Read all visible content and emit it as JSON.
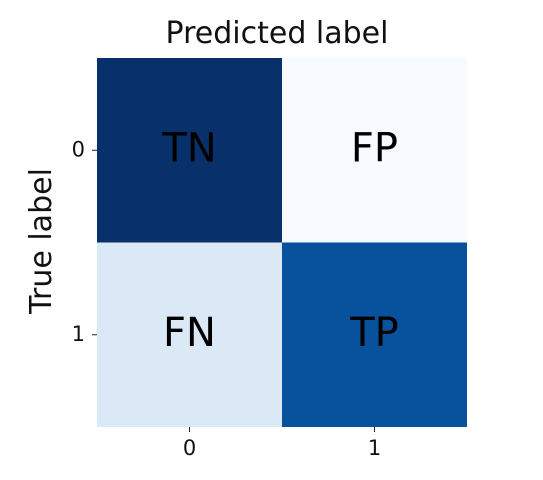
{
  "chart_data": {
    "type": "heatmap",
    "title": "Predicted label",
    "ylabel": "True label",
    "x_categories": [
      "0",
      "1"
    ],
    "y_categories": [
      "0",
      "1"
    ],
    "cells": [
      {
        "row": 0,
        "col": 0,
        "label": "TN",
        "color": "#08306b"
      },
      {
        "row": 0,
        "col": 1,
        "label": "FP",
        "color": "#f7fbff"
      },
      {
        "row": 1,
        "col": 0,
        "label": "FN",
        "color": "#dbe9f6"
      },
      {
        "row": 1,
        "col": 1,
        "label": "TP",
        "color": "#08519c"
      }
    ],
    "colormap": "Blues",
    "grid": false
  }
}
